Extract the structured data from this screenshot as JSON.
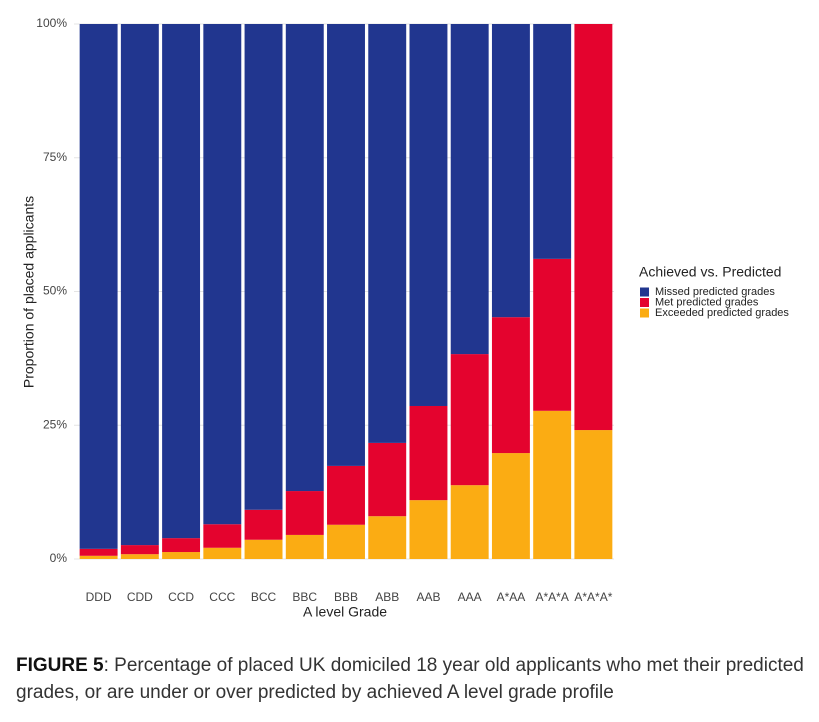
{
  "chart_data": {
    "type": "stacked_bar",
    "categories": [
      "DDD",
      "CDD",
      "CCD",
      "CCC",
      "BCC",
      "BBC",
      "BBB",
      "ABB",
      "AAB",
      "AAA",
      "A*AA",
      "A*A*A",
      "A*A*A*"
    ],
    "series": [
      {
        "name": "Missed predicted grades",
        "color": "#21368f",
        "values": [
          98.1,
          97.4,
          96.1,
          93.5,
          90.8,
          87.3,
          82.6,
          78.3,
          71.4,
          61.7,
          54.8,
          43.9,
          0
        ]
      },
      {
        "name": "Met predicted grades",
        "color": "#e4032e",
        "values": [
          1.3,
          1.7,
          2.6,
          4.4,
          5.6,
          8.2,
          11.0,
          13.7,
          17.6,
          24.5,
          25.4,
          28.4,
          75.9
        ]
      },
      {
        "name": "Exceeded predicted grades",
        "color": "#fbac13",
        "values": [
          0.6,
          0.9,
          1.3,
          2.1,
          3.6,
          4.5,
          6.4,
          8.0,
          11.0,
          13.8,
          19.8,
          27.7,
          24.1
        ]
      }
    ],
    "x_label": "A level Grade",
    "y_label": "Proportion of placed applicants",
    "legend_title": "Achieved vs. Predicted",
    "ylim": [
      0,
      100
    ],
    "yticks": [
      {
        "value": 0,
        "label": "0%"
      },
      {
        "value": 25,
        "label": "25%"
      },
      {
        "value": 50,
        "label": "50%"
      },
      {
        "value": 75,
        "label": "75%"
      },
      {
        "value": 100,
        "label": "100%"
      }
    ],
    "grid": true
  },
  "figure_caption": {
    "label": "FIGURE 5",
    "text": ": Percentage of placed UK domiciled 18 year old applicants who met their predicted grades, or are under or over predicted by achieved A level grade profile"
  }
}
